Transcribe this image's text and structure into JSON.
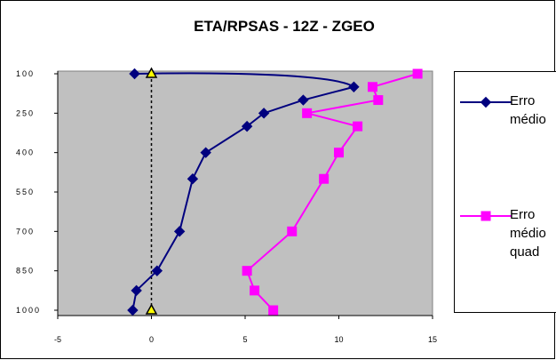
{
  "chart_data": {
    "type": "scatter",
    "title": "ETA/RPSAS - 12Z - ZGEO",
    "xlim": [
      -5,
      15
    ],
    "ylim": [
      100,
      1000
    ],
    "y_inverted": true,
    "x_ticks": [
      "-5",
      "0",
      "5",
      "10",
      "15"
    ],
    "y_ticks": [
      "100",
      "250",
      "400",
      "550",
      "700",
      "850",
      "1000"
    ],
    "zero_line": "dashed",
    "series": [
      {
        "name": "Erro médio",
        "color": "#00007f",
        "marker": "diamond",
        "points": [
          [
            -0.9,
            100
          ],
          [
            10.8,
            150
          ],
          [
            8.1,
            200
          ],
          [
            6.0,
            250
          ],
          [
            5.1,
            300
          ],
          [
            2.9,
            400
          ],
          [
            2.2,
            500
          ],
          [
            1.5,
            700
          ],
          [
            0.3,
            850
          ],
          [
            -0.8,
            925
          ],
          [
            -1.0,
            1000
          ]
        ]
      },
      {
        "name": "Erro médio quad",
        "color": "#ff00ff",
        "marker": "square",
        "points": [
          [
            14.2,
            100
          ],
          [
            11.8,
            150
          ],
          [
            12.1,
            200
          ],
          [
            8.3,
            250
          ],
          [
            11.0,
            300
          ],
          [
            10.0,
            400
          ],
          [
            9.2,
            500
          ],
          [
            7.5,
            700
          ],
          [
            5.1,
            850
          ],
          [
            5.5,
            925
          ],
          [
            6.5,
            1000
          ]
        ]
      }
    ],
    "reference_points": [
      [
        0,
        100
      ],
      [
        0,
        1000
      ]
    ],
    "legend_position": "right",
    "background": "#c0c0c0"
  },
  "legend": {
    "items": [
      {
        "label": "Erro\nmédio",
        "color": "#00007f",
        "marker": "diamond"
      },
      {
        "label": "Erro\nmédio\nquad",
        "color": "#ff00ff",
        "marker": "square"
      }
    ]
  }
}
